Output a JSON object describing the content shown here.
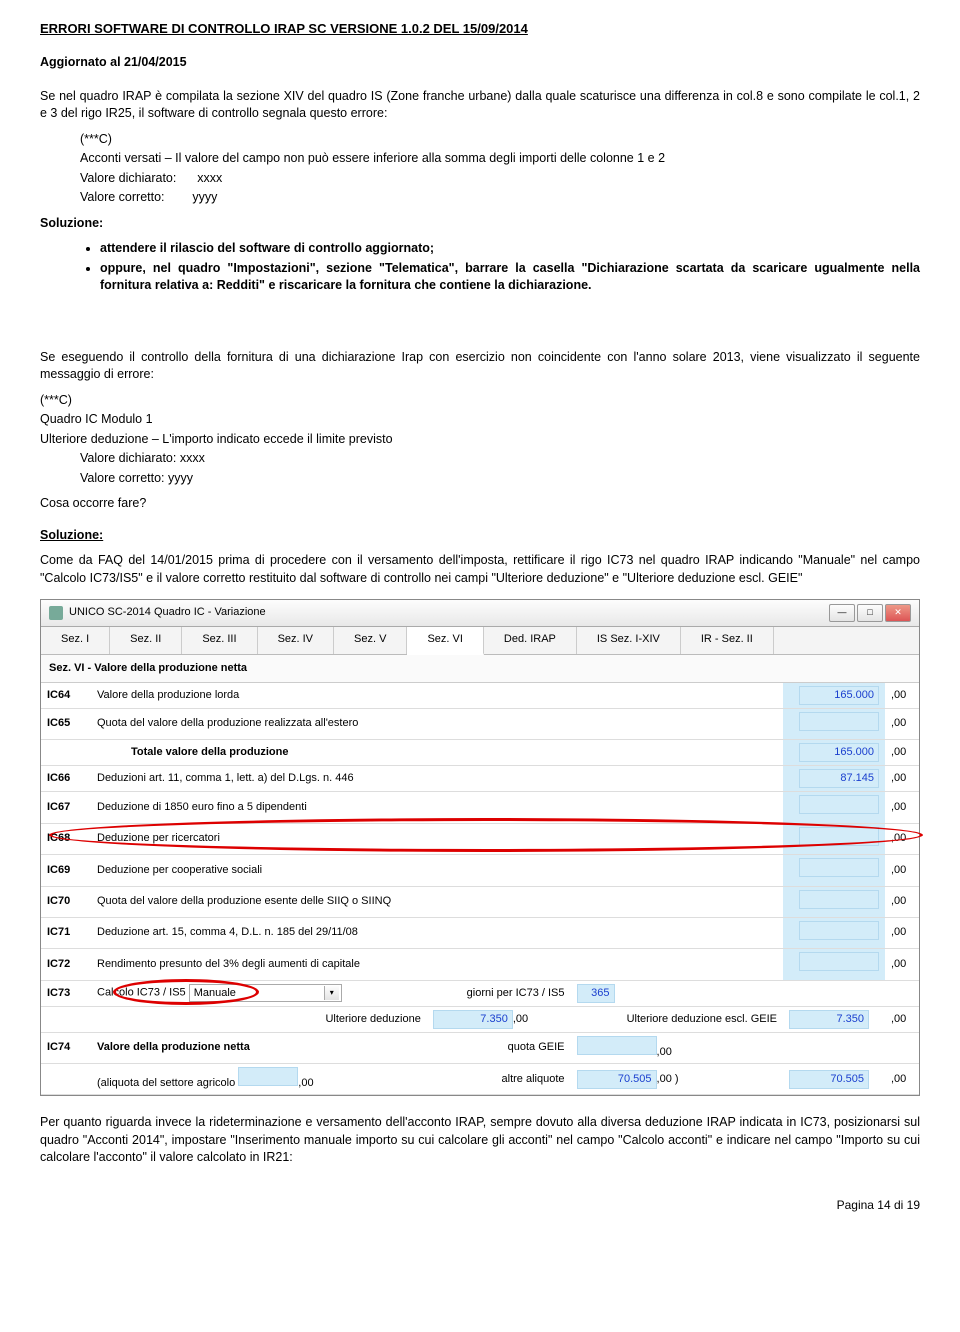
{
  "header": {
    "title": "ERRORI SOFTWARE DI CONTROLLO IRAP SC VERSIONE 1.0.2 DEL 15/09/2014",
    "updated": "Aggiornato al 21/04/2015"
  },
  "block1": {
    "intro": "Se nel quadro IRAP è compilata la sezione XIV del quadro IS (Zone franche urbane) dalla quale scaturisce una differenza in col.8 e sono compilate le col.1, 2 e 3 del rigo IR25, il software di controllo segnala questo errore:",
    "star": "(***C)",
    "err": "Acconti versati – Il valore del campo non può essere inferiore alla somma degli importi delle colonne 1 e 2",
    "vd_lbl": "Valore dichiarato:",
    "vd_val": "xxxx",
    "vc_lbl": "Valore corretto:",
    "vc_val": "yyyy",
    "sol_hdr": "Soluzione:",
    "bul1a": "attendere il rilascio del software di controllo aggiornato;",
    "bul2a": "oppure, nel quadro \"Impostazioni\", sezione \"Telematica\", barrare la casella \"Dichiarazione scartata da scaricare ugualmente nella fornitura relativa a: Redditi\" e riscaricare la fornitura che contiene la dichiarazione."
  },
  "block2": {
    "intro": "Se eseguendo il controllo della fornitura di una dichiarazione Irap con esercizio non coincidente con l'anno solare 2013, viene visualizzato il seguente messaggio di errore:",
    "star": "(***C)",
    "l1": "Quadro IC Modulo 1",
    "l2": "Ulteriore deduzione – L'importo indicato eccede il limite previsto",
    "vd": "Valore dichiarato: xxxx",
    "vc": "Valore corretto: yyyy",
    "cosa": "Cosa occorre fare?",
    "sol_hdr": "Soluzione:",
    "sol_text": "Come da FAQ del 14/01/2015 prima di procedere con il versamento dell'imposta, rettificare il rigo IC73 nel quadro IRAP indicando \"Manuale\" nel campo \"Calcolo IC73/IS5\" e il valore corretto restituito dal software di controllo nei campi \"Ulteriore deduzione\" e \"Ulteriore deduzione escl. GEIE\""
  },
  "win": {
    "title": "UNICO SC-2014 Quadro IC - Variazione",
    "tabs": [
      "Sez. I",
      "Sez. II",
      "Sez. III",
      "Sez. IV",
      "Sez. V",
      "Sez. VI",
      "Ded. IRAP",
      "IS Sez. I-XIV",
      "IR - Sez. II"
    ],
    "active_tab": 5,
    "section": "Sez. VI - Valore della produzione netta",
    "rows": [
      {
        "code": "IC64",
        "desc": "Valore della produzione lorda",
        "val": "165.000"
      },
      {
        "code": "IC65",
        "desc": "Quota del valore della produzione realizzata all'estero",
        "val": ""
      },
      {
        "code": "",
        "desc": "Totale valore della produzione",
        "val": "165.000",
        "bold": true
      },
      {
        "code": "IC66",
        "desc": "Deduzioni art. 11, comma 1, lett. a) del D.Lgs. n. 446",
        "val": "87.145"
      },
      {
        "code": "IC67",
        "desc": "Deduzione di 1850 euro fino a 5 dipendenti",
        "val": ""
      },
      {
        "code": "IC68",
        "desc": "Deduzione per ricercatori",
        "val": ""
      },
      {
        "code": "IC69",
        "desc": "Deduzione per cooperative sociali",
        "val": ""
      },
      {
        "code": "IC70",
        "desc": "Quota del valore della produzione esente delle SIIQ o SIINQ",
        "val": ""
      },
      {
        "code": "IC71",
        "desc": "Deduzione art. 15, comma 4, D.L. n. 185 del 29/11/08",
        "val": ""
      },
      {
        "code": "IC72",
        "desc": "Rendimento presunto del 3% degli aumenti di capitale",
        "val": ""
      }
    ],
    "ic73": {
      "code": "IC73",
      "calc_lbl": "Calcolo IC73 / IS5",
      "calc_val": "Manuale",
      "giorni_lbl": "giorni per IC73 / IS5",
      "giorni_val": "365",
      "ud_lbl": "Ulteriore deduzione",
      "ud_val": "7.350",
      "udg_lbl": "Ulteriore deduzione escl. GEIE",
      "udg_val": "7.350"
    },
    "ic74": {
      "code": "IC74",
      "desc": "Valore della produzione netta",
      "quota_lbl": "quota GEIE",
      "quota_val": "",
      "aliq_lbl": "(aliquota del settore agricolo",
      "aliq_val": "",
      "altre_lbl": "altre aliquote",
      "altre_val": "70.505",
      "paren": ")",
      "tot": "70.505"
    }
  },
  "block3": {
    "text": "Per quanto riguarda invece la rideterminazione e versamento dell'acconto IRAP, sempre dovuto alla diversa deduzione IRAP indicata in IC73, posizionarsi sul quadro \"Acconti 2014\", impostare \"Inserimento manuale importo su cui calcolare gli acconti\" nel campo \"Calcolo acconti\" e indicare nel campo \"Importo su cui calcolare l'acconto\" il valore calcolato in IR21:"
  },
  "footer": {
    "page": "Pagina 14 di 19"
  }
}
